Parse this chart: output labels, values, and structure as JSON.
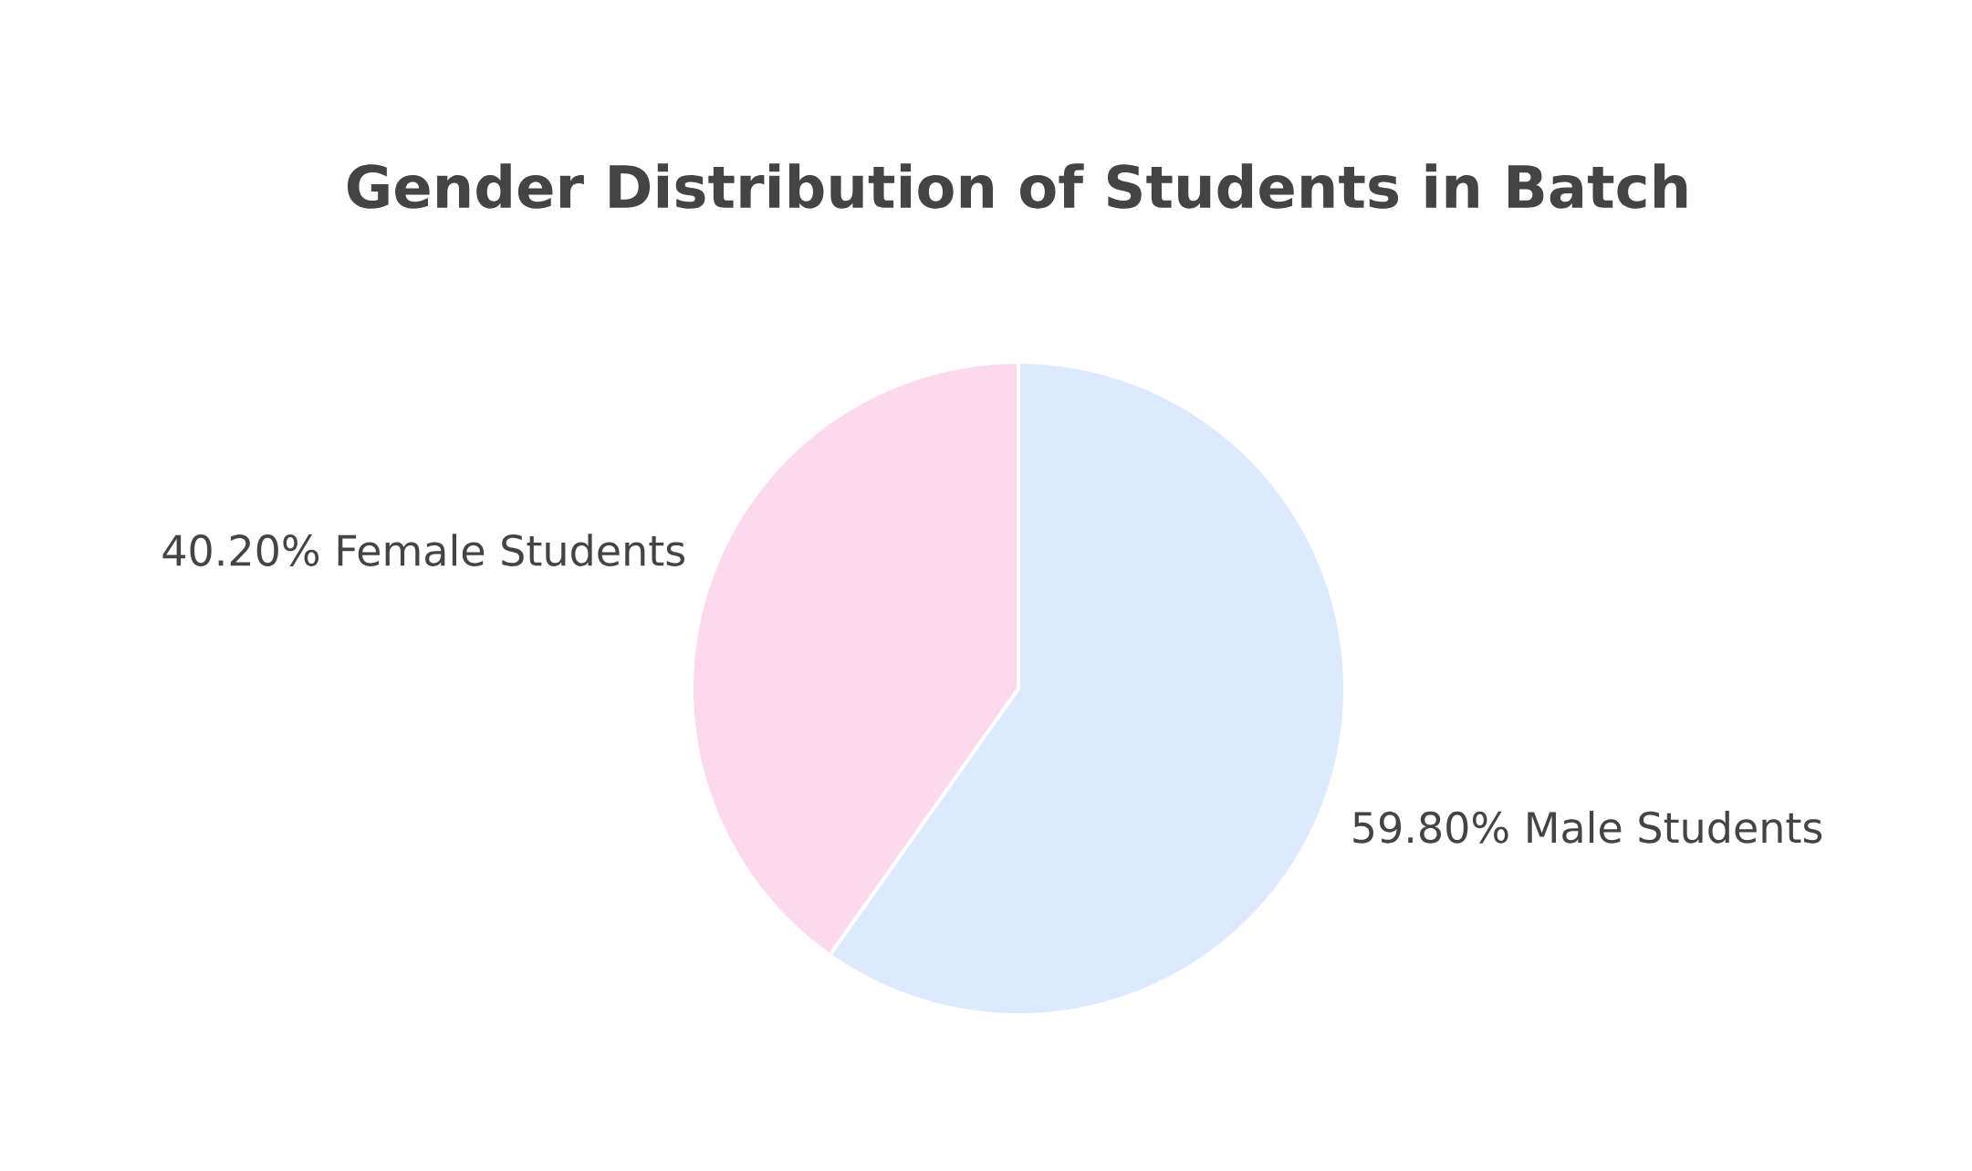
{
  "chart_data": {
    "type": "pie",
    "title": "Gender Distribution of Students in Batch",
    "categories": [
      "Male Students",
      "Female Students"
    ],
    "values": [
      59.8,
      40.2
    ],
    "value_labels": [
      "59.80%",
      "40.20%"
    ],
    "colors": [
      "#dde9fe",
      "#fdd9ee"
    ]
  }
}
